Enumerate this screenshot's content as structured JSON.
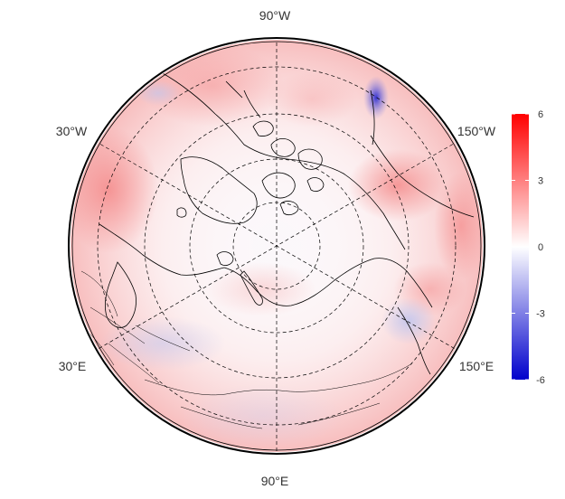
{
  "map": {
    "projection": "polar-stereographic-north",
    "longitude_labels": {
      "top": "90°W",
      "upper_left": "30°W",
      "upper_right": "150°W",
      "lower_left": "30°E",
      "lower_right": "150°E",
      "bottom": "90°E"
    },
    "graticule": {
      "meridians_dashed": true,
      "parallels_dashed": true
    }
  },
  "colorbar": {
    "ticks": [
      "6",
      "3",
      "0",
      "-3",
      "-6"
    ],
    "range": [
      -6,
      6
    ],
    "colors": {
      "max": "#ff0000",
      "mid": "#ffffff",
      "min": "#0000cc"
    }
  },
  "colors": {
    "land_outline": "#000000",
    "positive_anomaly": "#f4a0a0",
    "negative_anomaly": "#a8aee0",
    "map_border": "#000000"
  }
}
